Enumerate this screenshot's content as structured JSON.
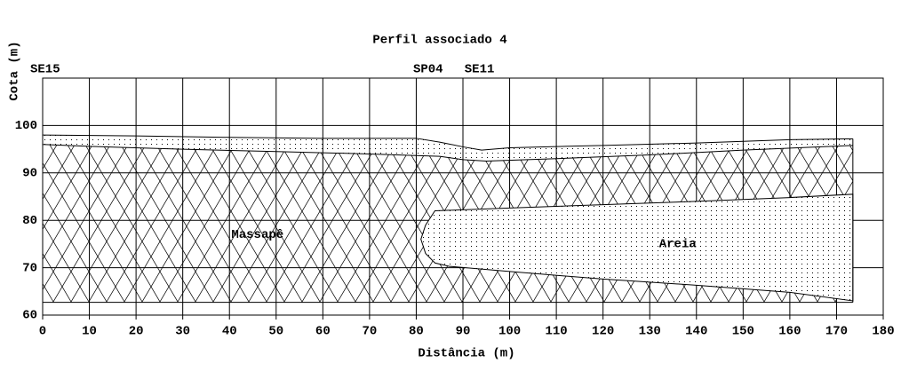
{
  "chart_data": {
    "type": "profile",
    "title": "Perfil associado 4",
    "xlabel": "Distância (m)",
    "ylabel": "Cota (m)",
    "xlim": [
      0,
      180
    ],
    "ylim": [
      60,
      110
    ],
    "xticks": [
      0,
      10,
      20,
      30,
      40,
      50,
      60,
      70,
      80,
      90,
      100,
      110,
      120,
      130,
      140,
      150,
      160,
      170,
      180
    ],
    "yticks": [
      60,
      70,
      80,
      90,
      100
    ],
    "grid": true,
    "boreholes": [
      {
        "label": "SE15",
        "x": 0
      },
      {
        "label": "SP04",
        "x": 82
      },
      {
        "label": "SE11",
        "x": 93
      }
    ],
    "layers": [
      {
        "x": [
          0,
          20,
          40,
          60,
          80,
          85,
          90,
          94,
          100,
          120,
          140,
          160,
          173.5
        ],
        "values": [
          98,
          97.8,
          97.5,
          97.3,
          97.3,
          96.5,
          95.5,
          94.8,
          95.3,
          95.8,
          96.3,
          97,
          97.2
        ]
      },
      {
        "x": [
          0,
          10,
          30,
          50,
          70,
          85,
          90,
          95,
          110,
          130,
          150,
          173.5
        ],
        "values": [
          96,
          95.6,
          95,
          94.5,
          94,
          93.5,
          92.8,
          92.5,
          93,
          93.8,
          94.8,
          95.8
        ]
      },
      {
        "x": [
          0,
          173.5
        ],
        "values": [
          62.7,
          62.7
        ]
      }
    ],
    "lens": {
      "x": [
        84,
        100,
        120,
        140,
        160,
        173.5,
        173.5,
        160,
        140,
        120,
        100,
        87,
        84,
        82,
        81,
        82,
        84
      ],
      "values": [
        82,
        82.6,
        83.3,
        84,
        84.8,
        85.5,
        63,
        64.8,
        66.3,
        67.6,
        69.2,
        70.3,
        71,
        73,
        76,
        79,
        82
      ]
    },
    "annotations": [
      {
        "text": "Massapê",
        "x": 46,
        "y": 77
      },
      {
        "text": "Areia",
        "x": 136,
        "y": 75
      }
    ]
  }
}
